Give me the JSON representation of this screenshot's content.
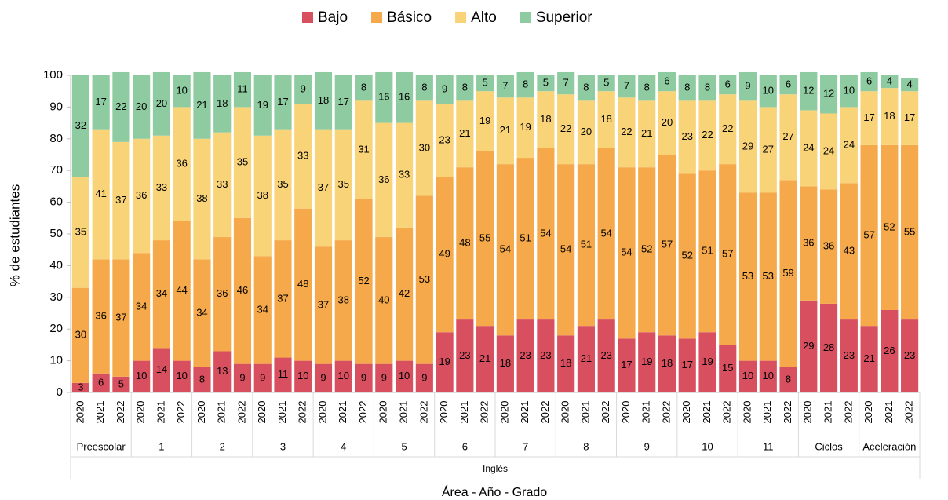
{
  "chart_data": {
    "type": "stacked_bar",
    "x_label": "Área - Año - Grado",
    "y_label": "% de estudiantes",
    "area": "Inglés",
    "groups": [
      "Preescolar",
      "1",
      "2",
      "3",
      "4",
      "5",
      "6",
      "7",
      "8",
      "9",
      "10",
      "11",
      "Ciclos",
      "Aceleración"
    ],
    "categories": [
      "2020",
      "2021",
      "2022",
      "2020",
      "2021",
      "2022",
      "2020",
      "2021",
      "2022",
      "2020",
      "2021",
      "2022",
      "2020",
      "2021",
      "2022",
      "2020",
      "2021",
      "2022",
      "2020",
      "2021",
      "2022",
      "2020",
      "2021",
      "2022",
      "2020",
      "2021",
      "2022",
      "2020",
      "2021",
      "2022",
      "2020",
      "2021",
      "2022",
      "2020",
      "2021",
      "2022",
      "2020",
      "2021",
      "2022",
      "2020",
      "2021",
      "2022"
    ],
    "ylim": [
      0,
      100
    ],
    "yticks": [
      0,
      10,
      20,
      30,
      40,
      50,
      60,
      70,
      80,
      90,
      100
    ],
    "legend": "top",
    "series": [
      {
        "name": "Bajo",
        "color": "#d8505f",
        "values": [
          3,
          6,
          5,
          10,
          14,
          10,
          8,
          13,
          9,
          9,
          11,
          10,
          9,
          10,
          9,
          9,
          10,
          9,
          19,
          23,
          21,
          18,
          23,
          23,
          18,
          21,
          23,
          17,
          19,
          18,
          17,
          19,
          15,
          10,
          10,
          8,
          29,
          28,
          23,
          21,
          26,
          23
        ]
      },
      {
        "name": "Básico",
        "color": "#f5a94a",
        "values": [
          30,
          36,
          37,
          34,
          34,
          44,
          34,
          36,
          46,
          34,
          37,
          48,
          37,
          38,
          52,
          40,
          42,
          53,
          49,
          48,
          55,
          54,
          51,
          54,
          54,
          51,
          54,
          54,
          52,
          57,
          52,
          51,
          57,
          53,
          53,
          59,
          36,
          36,
          43,
          57,
          52,
          55
        ]
      },
      {
        "name": "Alto",
        "color": "#f8d378",
        "values": [
          35,
          41,
          37,
          36,
          33,
          36,
          38,
          33,
          35,
          38,
          35,
          33,
          37,
          35,
          31,
          36,
          33,
          30,
          23,
          21,
          19,
          21,
          19,
          18,
          22,
          20,
          18,
          22,
          21,
          20,
          23,
          22,
          22,
          29,
          27,
          27,
          24,
          24,
          24,
          17,
          18,
          17
        ]
      },
      {
        "name": "Superior",
        "color": "#8ecba1",
        "values": [
          32,
          17,
          22,
          20,
          20,
          10,
          21,
          18,
          11,
          19,
          17,
          9,
          18,
          17,
          8,
          16,
          16,
          8,
          9,
          8,
          5,
          7,
          8,
          5,
          7,
          8,
          5,
          7,
          8,
          6,
          8,
          8,
          6,
          9,
          10,
          6,
          12,
          12,
          10,
          6,
          4,
          4
        ]
      }
    ]
  }
}
